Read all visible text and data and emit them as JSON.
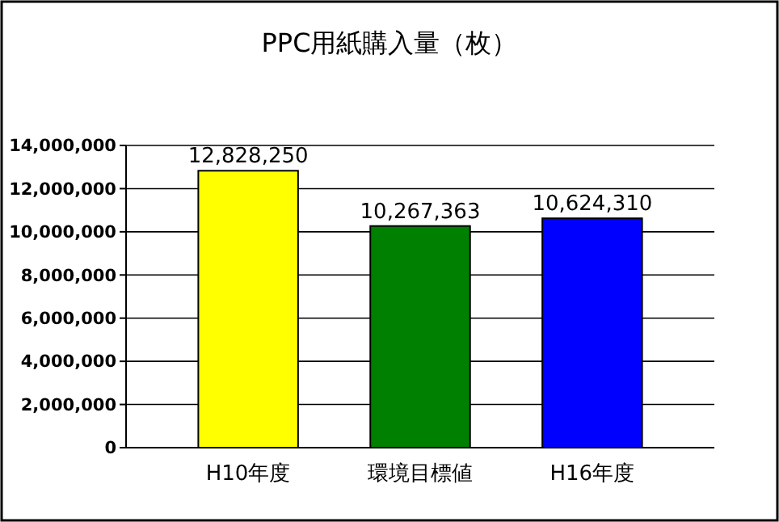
{
  "chart_data": {
    "type": "bar",
    "title": "PPC用紙購入量（枚）",
    "categories": [
      "H10年度",
      "環境目標値",
      "H16年度"
    ],
    "values": [
      12828250,
      10267363,
      10624310
    ],
    "colors": [
      "#ffff00",
      "#008000",
      "#0000ff"
    ],
    "ylim": [
      0,
      14000000
    ],
    "yticks": [
      {
        "value": 0,
        "label": "0"
      },
      {
        "value": 2000000,
        "label": "2,000,000"
      },
      {
        "value": 4000000,
        "label": "4,000,000"
      },
      {
        "value": 6000000,
        "label": "6,000,000"
      },
      {
        "value": 8000000,
        "label": "8,000,000"
      },
      {
        "value": 10000000,
        "label": "10,000,000"
      },
      {
        "value": 12000000,
        "label": "12,000,000"
      },
      {
        "value": 14000000,
        "label": "14,000,000"
      }
    ],
    "grid": "y",
    "value_labels": [
      "12,828,250",
      "10,267,363",
      "10,624,310"
    ]
  }
}
